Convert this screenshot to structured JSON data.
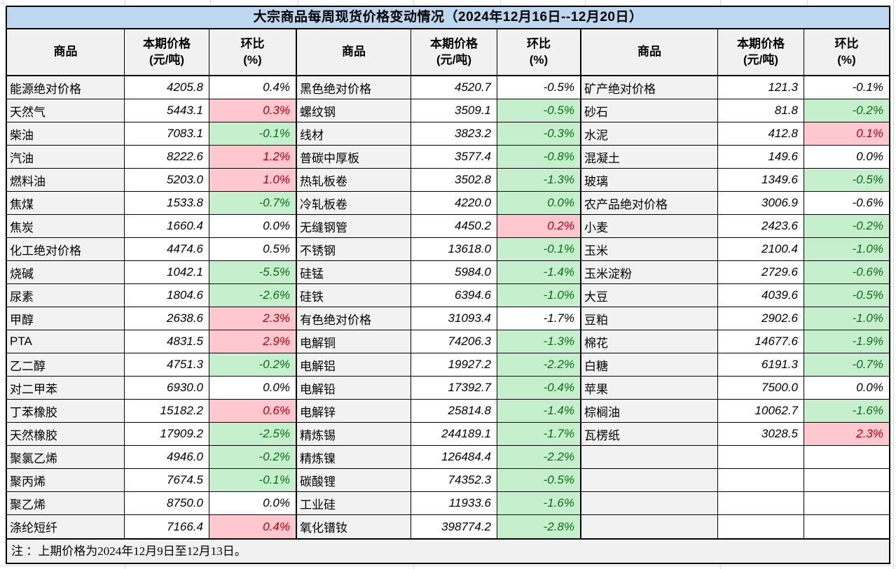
{
  "title": "大宗商品每周现货价格变动情况（2024年12月16日--12月20日）",
  "column_headers": {
    "item": "商品",
    "price_line1": "本期价格",
    "price_line2": "(元/吨)",
    "pct_line1": "环比",
    "pct_line2": "(%)"
  },
  "footer": {
    "note": "注 ：上期价格为2024年12月9日至12月13日。"
  },
  "colors": {
    "title_bg": "#BDD7EE",
    "header_bg": "#F1F1F1",
    "name_bg": "#F2F2F2",
    "category_bg": "#DDEBF7",
    "up_bg": "#FFC7CE",
    "up_text": "#B40011",
    "down_bg": "#C6EFCE",
    "down_text": "#0B6E14"
  },
  "chart_data": {
    "type": "table",
    "columns_per_group": [
      "商品",
      "本期价格(元/吨)",
      "环比(%)"
    ],
    "groups": [
      {
        "rows": [
          {
            "name": "能源绝对价格",
            "price": "4205.8",
            "pct": "0.4%",
            "kind": "cat",
            "hl": false
          },
          {
            "name": "天然气",
            "price": "5443.1",
            "pct": "0.3%",
            "kind": "item",
            "chg": "pos"
          },
          {
            "name": "柴油",
            "price": "7083.1",
            "pct": "-0.1%",
            "kind": "item",
            "chg": "neg"
          },
          {
            "name": "汽油",
            "price": "8222.6",
            "pct": "1.2%",
            "kind": "item",
            "chg": "pos"
          },
          {
            "name": "燃料油",
            "price": "5203.0",
            "pct": "1.0%",
            "kind": "item",
            "chg": "pos"
          },
          {
            "name": "焦煤",
            "price": "1533.8",
            "pct": "-0.7%",
            "kind": "item",
            "chg": "neg"
          },
          {
            "name": "焦炭",
            "price": "1660.4",
            "pct": "0.0%",
            "kind": "item",
            "chg": "zero"
          },
          {
            "name": "化工绝对价格",
            "price": "4474.6",
            "pct": "0.5%",
            "kind": "cat",
            "hl": false
          },
          {
            "name": "烧碱",
            "price": "1042.1",
            "pct": "-5.5%",
            "kind": "item",
            "chg": "neg"
          },
          {
            "name": "尿素",
            "price": "1804.6",
            "pct": "-2.6%",
            "kind": "item",
            "chg": "neg"
          },
          {
            "name": "甲醇",
            "price": "2638.6",
            "pct": "2.3%",
            "kind": "item",
            "chg": "pos"
          },
          {
            "name": "PTA",
            "price": "4831.5",
            "pct": "2.9%",
            "kind": "item",
            "chg": "pos"
          },
          {
            "name": "乙二醇",
            "price": "4751.3",
            "pct": "-0.2%",
            "kind": "item",
            "chg": "neg"
          },
          {
            "name": "对二甲苯",
            "price": "6930.0",
            "pct": "0.0%",
            "kind": "item",
            "chg": "zero"
          },
          {
            "name": "丁苯橡胶",
            "price": "15182.2",
            "pct": "0.6%",
            "kind": "item",
            "chg": "pos"
          },
          {
            "name": "天然橡胶",
            "price": "17909.2",
            "pct": "-2.5%",
            "kind": "item",
            "chg": "neg"
          },
          {
            "name": "聚氯乙烯",
            "price": "4946.0",
            "pct": "-0.2%",
            "kind": "item",
            "chg": "neg"
          },
          {
            "name": "聚丙烯",
            "price": "7674.5",
            "pct": "-0.1%",
            "kind": "item",
            "chg": "neg"
          },
          {
            "name": "聚乙烯",
            "price": "8750.0",
            "pct": "0.0%",
            "kind": "item",
            "chg": "zero"
          },
          {
            "name": "涤纶短纤",
            "price": "7166.4",
            "pct": "0.4%",
            "kind": "item",
            "chg": "pos"
          }
        ]
      },
      {
        "rows": [
          {
            "name": "黑色绝对价格",
            "price": "4520.7",
            "pct": "-0.5%",
            "kind": "cat",
            "hl": true
          },
          {
            "name": "螺纹钢",
            "price": "3509.1",
            "pct": "-0.5%",
            "kind": "item",
            "chg": "neg"
          },
          {
            "name": "线材",
            "price": "3823.2",
            "pct": "-0.3%",
            "kind": "item",
            "chg": "neg"
          },
          {
            "name": "普碳中厚板",
            "price": "3577.4",
            "pct": "-0.8%",
            "kind": "item",
            "chg": "neg"
          },
          {
            "name": "热轧板卷",
            "price": "3502.8",
            "pct": "-1.3%",
            "kind": "item",
            "chg": "neg"
          },
          {
            "name": "冷轧板卷",
            "price": "4220.0",
            "pct": "0.0%",
            "kind": "item",
            "chg": "neg"
          },
          {
            "name": "无缝钢管",
            "price": "4450.2",
            "pct": "0.2%",
            "kind": "item",
            "chg": "pos"
          },
          {
            "name": "不锈钢",
            "price": "13618.0",
            "pct": "-0.1%",
            "kind": "item",
            "chg": "neg"
          },
          {
            "name": "硅锰",
            "price": "5984.0",
            "pct": "-1.4%",
            "kind": "item",
            "chg": "neg"
          },
          {
            "name": "硅铁",
            "price": "6394.6",
            "pct": "-1.0%",
            "kind": "item",
            "chg": "neg"
          },
          {
            "name": "有色绝对价格",
            "price": "31093.4",
            "pct": "-1.7%",
            "kind": "cat",
            "hl": true
          },
          {
            "name": "电解铜",
            "price": "74206.3",
            "pct": "-1.3%",
            "kind": "item",
            "chg": "neg"
          },
          {
            "name": "电解铝",
            "price": "19927.2",
            "pct": "-2.2%",
            "kind": "item",
            "chg": "neg"
          },
          {
            "name": "电解铅",
            "price": "17392.7",
            "pct": "-0.4%",
            "kind": "item",
            "chg": "neg"
          },
          {
            "name": "电解锌",
            "price": "25814.8",
            "pct": "-1.4%",
            "kind": "item",
            "chg": "neg"
          },
          {
            "name": "精炼锡",
            "price": "244189.1",
            "pct": "-1.7%",
            "kind": "item",
            "chg": "neg"
          },
          {
            "name": "精炼镍",
            "price": "126484.4",
            "pct": "-2.2%",
            "kind": "item",
            "chg": "neg"
          },
          {
            "name": "碳酸锂",
            "price": "74352.3",
            "pct": "-0.5%",
            "kind": "item",
            "chg": "neg"
          },
          {
            "name": "工业硅",
            "price": "11933.6",
            "pct": "-1.6%",
            "kind": "item",
            "chg": "neg"
          },
          {
            "name": "氧化镨钕",
            "price": "398774.2",
            "pct": "-2.8%",
            "kind": "item",
            "chg": "neg"
          }
        ]
      },
      {
        "rows": [
          {
            "name": "矿产绝对价格",
            "price": "121.3",
            "pct": "-0.1%",
            "kind": "cat",
            "hl": false
          },
          {
            "name": "砂石",
            "price": "81.8",
            "pct": "-0.2%",
            "kind": "item",
            "chg": "neg"
          },
          {
            "name": "水泥",
            "price": "412.8",
            "pct": "0.1%",
            "kind": "item",
            "chg": "pos"
          },
          {
            "name": "混凝土",
            "price": "149.6",
            "pct": "0.0%",
            "kind": "item",
            "chg": "zero"
          },
          {
            "name": "玻璃",
            "price": "1349.6",
            "pct": "-0.5%",
            "kind": "item",
            "chg": "neg"
          },
          {
            "name": "农产品绝对价格",
            "price": "3006.9",
            "pct": "-0.6%",
            "kind": "cat",
            "hl": true
          },
          {
            "name": "小麦",
            "price": "2423.6",
            "pct": "-0.2%",
            "kind": "item",
            "chg": "neg"
          },
          {
            "name": "玉米",
            "price": "2100.4",
            "pct": "-1.0%",
            "kind": "item",
            "chg": "neg"
          },
          {
            "name": "玉米淀粉",
            "price": "2729.6",
            "pct": "-0.6%",
            "kind": "item",
            "chg": "neg"
          },
          {
            "name": "大豆",
            "price": "4039.6",
            "pct": "-0.5%",
            "kind": "item",
            "chg": "neg"
          },
          {
            "name": "豆粕",
            "price": "2902.6",
            "pct": "-1.0%",
            "kind": "item",
            "chg": "neg"
          },
          {
            "name": "棉花",
            "price": "14677.6",
            "pct": "-1.9%",
            "kind": "item",
            "chg": "neg"
          },
          {
            "name": "白糖",
            "price": "6191.3",
            "pct": "-0.7%",
            "kind": "item",
            "chg": "neg"
          },
          {
            "name": "苹果",
            "price": "7500.0",
            "pct": "0.0%",
            "kind": "item",
            "chg": "zero"
          },
          {
            "name": "棕榈油",
            "price": "10062.7",
            "pct": "-1.6%",
            "kind": "item",
            "chg": "neg"
          },
          {
            "name": "瓦楞纸",
            "price": "3028.5",
            "pct": "2.3%",
            "kind": "item",
            "chg": "pos"
          },
          {
            "name": "",
            "price": "",
            "pct": "",
            "kind": "empty"
          },
          {
            "name": "",
            "price": "",
            "pct": "",
            "kind": "empty"
          },
          {
            "name": "",
            "price": "",
            "pct": "",
            "kind": "empty"
          },
          {
            "name": "",
            "price": "",
            "pct": "",
            "kind": "empty"
          }
        ]
      }
    ]
  }
}
